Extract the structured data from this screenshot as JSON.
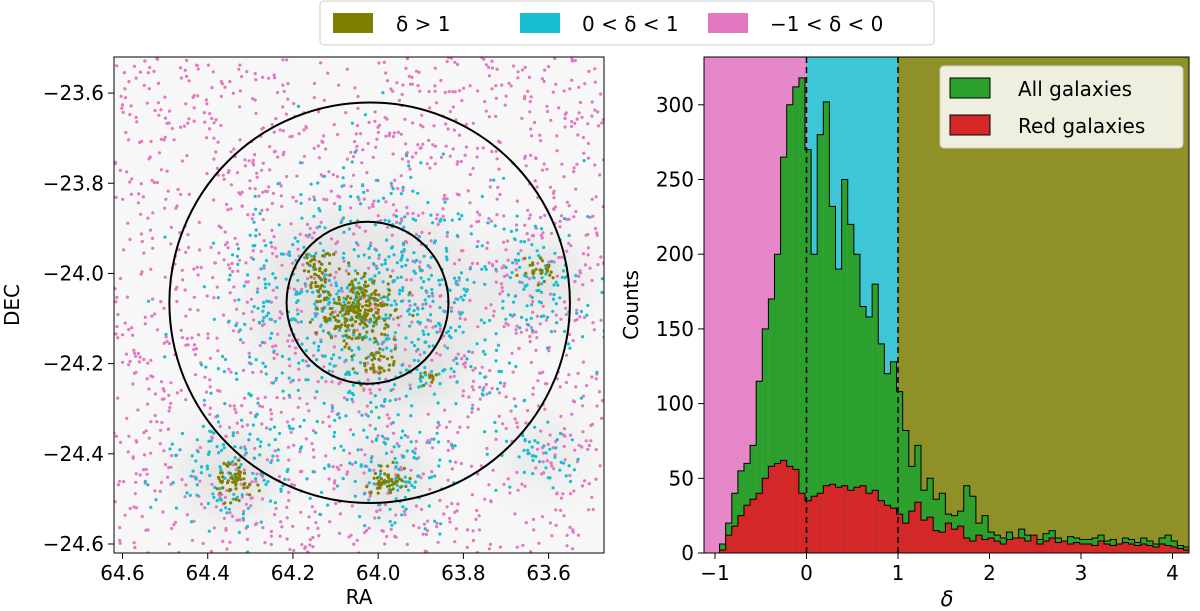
{
  "legend": {
    "entries": [
      {
        "label": "δ > 1",
        "color": "#808000"
      },
      {
        "label": "0 < δ < 1",
        "color": "#17becf"
      },
      {
        "label": "−1 < δ < 0",
        "color": "#e377c2"
      }
    ]
  },
  "chart_data": [
    {
      "type": "scatter",
      "title": "",
      "xlabel": "RA",
      "ylabel": "DEC",
      "xlim": [
        64.62,
        63.47
      ],
      "ylim": [
        -24.62,
        -23.52
      ],
      "x_ticks": [
        64.6,
        64.4,
        64.2,
        64.0,
        63.8,
        63.6
      ],
      "x_tick_labels": [
        "64.6",
        "64.4",
        "64.2",
        "64.0",
        "63.8",
        "63.6"
      ],
      "y_ticks": [
        -23.6,
        -23.8,
        -24.0,
        -24.2,
        -24.4,
        -24.6
      ],
      "y_tick_labels": [
        "−23.6",
        "−23.8",
        "−24.0",
        "−24.2",
        "−24.4",
        "−24.6"
      ],
      "circles": [
        {
          "center_ra": 64.02,
          "center_dec": -24.065,
          "radius_deg": 0.47
        },
        {
          "center_ra": 64.025,
          "center_dec": -24.065,
          "radius_deg": 0.19
        }
      ],
      "groups": [
        {
          "name": "δ > 1",
          "color": "#808000",
          "clusters": [
            {
              "ra": 64.05,
              "dec": -24.08,
              "n": 240,
              "sigma": 0.045
            },
            {
              "ra": 64.15,
              "dec": -23.99,
              "n": 45,
              "sigma": 0.025
            },
            {
              "ra": 64.0,
              "dec": -24.2,
              "n": 35,
              "sigma": 0.025
            },
            {
              "ra": 63.88,
              "dec": -24.23,
              "n": 10,
              "sigma": 0.012
            },
            {
              "ra": 64.34,
              "dec": -24.46,
              "n": 60,
              "sigma": 0.025
            },
            {
              "ra": 63.98,
              "dec": -24.46,
              "n": 50,
              "sigma": 0.022
            },
            {
              "ra": 63.62,
              "dec": -23.99,
              "n": 30,
              "sigma": 0.018
            }
          ]
        },
        {
          "name": "0 < δ < 1",
          "color": "#17becf",
          "clusters": [
            {
              "ra": 64.02,
              "dec": -24.08,
              "n": 700,
              "sigma": 0.18
            },
            {
              "ra": 64.35,
              "dec": -24.44,
              "n": 120,
              "sigma": 0.08
            },
            {
              "ra": 63.98,
              "dec": -24.45,
              "n": 100,
              "sigma": 0.07
            },
            {
              "ra": 63.62,
              "dec": -24.02,
              "n": 90,
              "sigma": 0.07
            },
            {
              "ra": 63.62,
              "dec": -24.4,
              "n": 50,
              "sigma": 0.06
            }
          ]
        },
        {
          "name": "−1 < δ < 0",
          "color": "#e377c2",
          "uniform": 1700
        }
      ],
      "background": "grey density map"
    },
    {
      "type": "bar",
      "title": "",
      "xlabel": "δ",
      "ylabel": "Counts",
      "xlim": [
        -1.12,
        4.18
      ],
      "ylim": [
        0,
        332
      ],
      "x_ticks": [
        -1,
        0,
        1,
        2,
        3,
        4
      ],
      "x_tick_labels": [
        "−1",
        "0",
        "1",
        "2",
        "3",
        "4"
      ],
      "y_ticks": [
        0,
        50,
        100,
        150,
        200,
        250,
        300
      ],
      "y_tick_labels": [
        "0",
        "50",
        "100",
        "150",
        "200",
        "250",
        "300"
      ],
      "bin_start": -0.95,
      "bin_width": 0.0667,
      "regions": [
        {
          "from": -1.12,
          "to": 0,
          "color": "#e587c9",
          "label": "−1 < δ < 0"
        },
        {
          "from": 0,
          "to": 1,
          "color": "#3ec5d6",
          "label": "0 < δ < 1"
        },
        {
          "from": 1,
          "to": 4.18,
          "color": "#8f9128",
          "label": "δ > 1"
        }
      ],
      "vlines": [
        0,
        1
      ],
      "legend_position": "top-right",
      "series": [
        {
          "name": "All galaxies",
          "color": "#2ca02c",
          "values": [
            6,
            20,
            40,
            55,
            60,
            72,
            115,
            150,
            170,
            200,
            265,
            300,
            312,
            318,
            270,
            200,
            280,
            302,
            232,
            190,
            250,
            220,
            200,
            165,
            158,
            180,
            140,
            120,
            128,
            108,
            82,
            58,
            72,
            42,
            50,
            36,
            40,
            26,
            25,
            28,
            45,
            38,
            20,
            25,
            14,
            12,
            10,
            14,
            10,
            16,
            12,
            10,
            9,
            13,
            15,
            10,
            8,
            11,
            10,
            9,
            9,
            10,
            12,
            8,
            9,
            6,
            10,
            9,
            7,
            10,
            8,
            6,
            10,
            12,
            8,
            5,
            4
          ]
        },
        {
          "name": "Red galaxies",
          "color": "#d62728",
          "values": [
            2,
            12,
            18,
            25,
            32,
            36,
            40,
            50,
            58,
            60,
            62,
            58,
            56,
            40,
            35,
            38,
            40,
            45,
            46,
            44,
            45,
            42,
            44,
            45,
            40,
            42,
            35,
            32,
            30,
            26,
            20,
            28,
            34,
            22,
            24,
            15,
            14,
            20,
            16,
            18,
            10,
            8,
            12,
            9,
            10,
            8,
            6,
            9,
            10,
            10,
            8,
            12,
            6,
            8,
            10,
            7,
            8,
            6,
            7,
            6,
            6,
            5,
            8,
            6,
            5,
            6,
            7,
            6,
            5,
            6,
            5,
            4,
            6,
            5,
            4,
            3,
            2
          ]
        }
      ]
    }
  ]
}
